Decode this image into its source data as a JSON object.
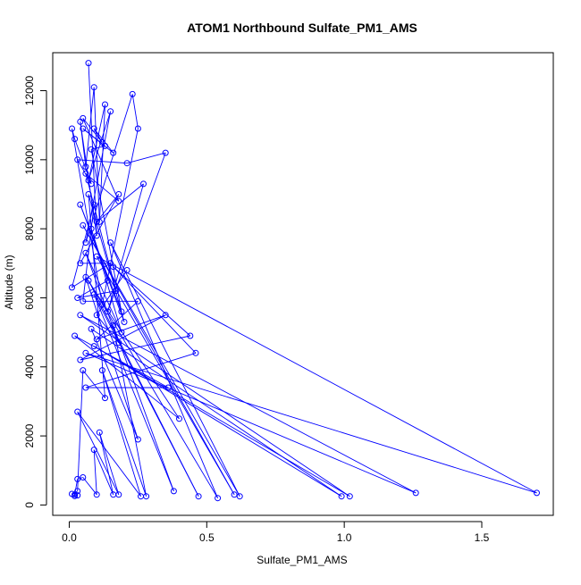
{
  "chart_data": {
    "type": "line",
    "title": "ATOM1 Northbound Sulfate_PM1_AMS",
    "xlabel": "Sulfate_PM1_AMS",
    "ylabel": "Altitude (m)",
    "xlim": [
      -0.06,
      1.76
    ],
    "ylim": [
      -300,
      13100
    ],
    "xticks": [
      0.0,
      0.5,
      1.0,
      1.5
    ],
    "xtick_labels": [
      "0.0",
      "0.5",
      "1.0",
      "1.5"
    ],
    "yticks": [
      0,
      2000,
      4000,
      6000,
      8000,
      10000,
      12000
    ],
    "ytick_labels": [
      "0",
      "2000",
      "4000",
      "6000",
      "8000",
      "10000",
      "12000"
    ],
    "grid": false,
    "legend": "none",
    "series_color": "#0000FF",
    "marker": "open-circle",
    "points": [
      [
        0.07,
        12800
      ],
      [
        0.1,
        7800
      ],
      [
        0.04,
        11100
      ],
      [
        0.06,
        9800
      ],
      [
        0.09,
        12100
      ],
      [
        0.11,
        8200
      ],
      [
        0.13,
        11600
      ],
      [
        0.07,
        9400
      ],
      [
        0.15,
        11400
      ],
      [
        0.06,
        7600
      ],
      [
        0.23,
        11900
      ],
      [
        0.25,
        10900
      ],
      [
        0.12,
        5800
      ],
      [
        0.01,
        10900
      ],
      [
        0.02,
        10600
      ],
      [
        0.08,
        9300
      ],
      [
        0.03,
        10000
      ],
      [
        0.21,
        9900
      ],
      [
        0.35,
        10200
      ],
      [
        0.14,
        5600
      ],
      [
        0.27,
        9300
      ],
      [
        0.1,
        8200
      ],
      [
        0.18,
        9000
      ],
      [
        0.04,
        7000
      ],
      [
        0.15,
        7000
      ],
      [
        0.01,
        6300
      ],
      [
        0.09,
        8700
      ],
      [
        0.05,
        5900
      ],
      [
        0.25,
        5900
      ],
      [
        0.1,
        4800
      ],
      [
        0.35,
        5500
      ],
      [
        0.04,
        4200
      ],
      [
        0.44,
        4900
      ],
      [
        0.16,
        6900
      ],
      [
        0.46,
        4400
      ],
      [
        0.06,
        3400
      ],
      [
        0.36,
        3400
      ],
      [
        0.02,
        4900
      ],
      [
        0.4,
        2500
      ],
      [
        0.06,
        6600
      ],
      [
        0.25,
        1900
      ],
      [
        0.08,
        5100
      ],
      [
        0.99,
        250
      ],
      [
        0.09,
        4600
      ],
      [
        1.02,
        250
      ],
      [
        0.04,
        5500
      ],
      [
        1.26,
        350
      ],
      [
        0.06,
        4400
      ],
      [
        1.7,
        350
      ],
      [
        0.1,
        7200
      ],
      [
        0.6,
        300
      ],
      [
        0.05,
        8100
      ],
      [
        0.62,
        250
      ],
      [
        0.15,
        7600
      ],
      [
        0.54,
        200
      ],
      [
        0.07,
        6500
      ],
      [
        0.47,
        250
      ],
      [
        0.09,
        6100
      ],
      [
        0.38,
        400
      ],
      [
        0.16,
        5200
      ],
      [
        0.28,
        250
      ],
      [
        0.12,
        3900
      ],
      [
        0.26,
        250
      ],
      [
        0.03,
        2700
      ],
      [
        0.18,
        300
      ],
      [
        0.11,
        2100
      ],
      [
        0.16,
        300
      ],
      [
        0.09,
        1600
      ],
      [
        0.1,
        300
      ],
      [
        0.05,
        800
      ],
      [
        0.03,
        750
      ],
      [
        0.02,
        300
      ],
      [
        0.03,
        280
      ],
      [
        0.02,
        260
      ],
      [
        0.01,
        320
      ],
      [
        0.03,
        400
      ],
      [
        0.05,
        3900
      ],
      [
        0.13,
        3100
      ],
      [
        0.07,
        9000
      ],
      [
        0.2,
        5300
      ],
      [
        0.04,
        8700
      ],
      [
        0.19,
        5600
      ],
      [
        0.08,
        10300
      ],
      [
        0.13,
        10400
      ],
      [
        0.05,
        10900
      ],
      [
        0.16,
        10200
      ],
      [
        0.09,
        10900
      ],
      [
        0.12,
        10500
      ],
      [
        0.05,
        11200
      ],
      [
        0.18,
        8800
      ],
      [
        0.06,
        9600
      ],
      [
        0.17,
        6200
      ],
      [
        0.03,
        6000
      ],
      [
        0.14,
        6500
      ],
      [
        0.08,
        8000
      ],
      [
        0.19,
        5000
      ],
      [
        0.06,
        7300
      ],
      [
        0.18,
        4700
      ],
      [
        0.1,
        5500
      ],
      [
        0.21,
        6800
      ]
    ]
  }
}
